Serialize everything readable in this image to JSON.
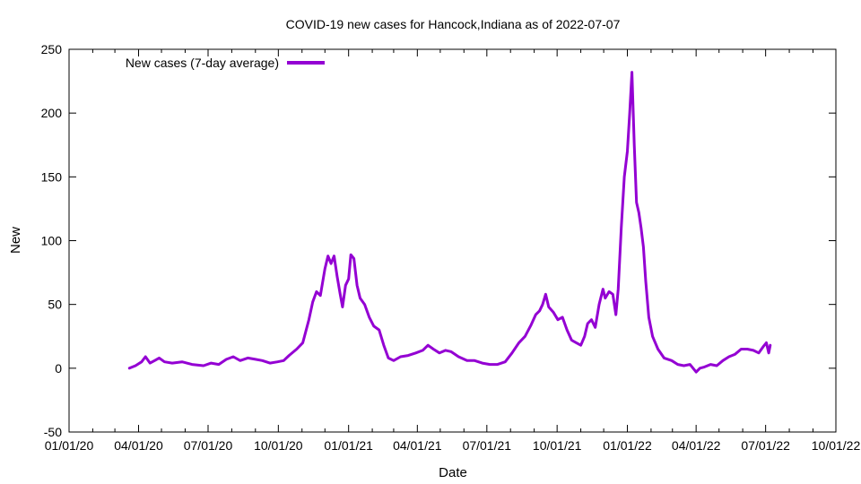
{
  "chart_data": {
    "type": "line",
    "title": "COVID-19 new cases for Hancock,Indiana as of 2022-07-07",
    "xlabel": "Date",
    "ylabel": "New",
    "xlim": [
      "2020-01-01",
      "2022-10-01"
    ],
    "ylim": [
      -50,
      250
    ],
    "y_ticks": [
      -50,
      0,
      50,
      100,
      150,
      200,
      250
    ],
    "x_ticks": [
      {
        "date": "2020-01-01",
        "label": "01/01/20"
      },
      {
        "date": "2020-04-01",
        "label": "04/01/20"
      },
      {
        "date": "2020-07-01",
        "label": "07/01/20"
      },
      {
        "date": "2020-10-01",
        "label": "10/01/20"
      },
      {
        "date": "2021-01-01",
        "label": "01/01/21"
      },
      {
        "date": "2021-04-01",
        "label": "04/01/21"
      },
      {
        "date": "2021-07-01",
        "label": "07/01/21"
      },
      {
        "date": "2021-10-01",
        "label": "10/01/21"
      },
      {
        "date": "2022-01-01",
        "label": "01/01/22"
      },
      {
        "date": "2022-04-01",
        "label": "04/01/22"
      },
      {
        "date": "2022-07-01",
        "label": "07/01/22"
      },
      {
        "date": "2022-10-01",
        "label": "10/01/22"
      }
    ],
    "grid": false,
    "legend": "top-left",
    "series": [
      {
        "name": "New cases (7-day average)",
        "color": "#9400d3",
        "points": [
          [
            "2020-03-20",
            0
          ],
          [
            "2020-03-28",
            2
          ],
          [
            "2020-04-05",
            5
          ],
          [
            "2020-04-10",
            9
          ],
          [
            "2020-04-16",
            4
          ],
          [
            "2020-04-22",
            6
          ],
          [
            "2020-04-28",
            8
          ],
          [
            "2020-05-05",
            5
          ],
          [
            "2020-05-15",
            4
          ],
          [
            "2020-05-28",
            5
          ],
          [
            "2020-06-10",
            3
          ],
          [
            "2020-06-25",
            2
          ],
          [
            "2020-07-05",
            4
          ],
          [
            "2020-07-15",
            3
          ],
          [
            "2020-07-25",
            7
          ],
          [
            "2020-08-03",
            9
          ],
          [
            "2020-08-12",
            6
          ],
          [
            "2020-08-22",
            8
          ],
          [
            "2020-09-01",
            7
          ],
          [
            "2020-09-10",
            6
          ],
          [
            "2020-09-20",
            4
          ],
          [
            "2020-09-30",
            5
          ],
          [
            "2020-10-08",
            6
          ],
          [
            "2020-10-15",
            10
          ],
          [
            "2020-10-25",
            15
          ],
          [
            "2020-11-02",
            20
          ],
          [
            "2020-11-10",
            38
          ],
          [
            "2020-11-15",
            52
          ],
          [
            "2020-11-20",
            60
          ],
          [
            "2020-11-25",
            57
          ],
          [
            "2020-12-01",
            78
          ],
          [
            "2020-12-05",
            88
          ],
          [
            "2020-12-09",
            82
          ],
          [
            "2020-12-13",
            88
          ],
          [
            "2020-12-17",
            72
          ],
          [
            "2020-12-21",
            58
          ],
          [
            "2020-12-24",
            48
          ],
          [
            "2020-12-28",
            65
          ],
          [
            "2021-01-01",
            70
          ],
          [
            "2021-01-04",
            89
          ],
          [
            "2021-01-08",
            86
          ],
          [
            "2021-01-12",
            65
          ],
          [
            "2021-01-16",
            55
          ],
          [
            "2021-01-22",
            50
          ],
          [
            "2021-01-28",
            40
          ],
          [
            "2021-02-03",
            33
          ],
          [
            "2021-02-10",
            30
          ],
          [
            "2021-02-16",
            18
          ],
          [
            "2021-02-22",
            8
          ],
          [
            "2021-03-01",
            6
          ],
          [
            "2021-03-10",
            9
          ],
          [
            "2021-03-20",
            10
          ],
          [
            "2021-03-30",
            12
          ],
          [
            "2021-04-08",
            14
          ],
          [
            "2021-04-15",
            18
          ],
          [
            "2021-04-22",
            15
          ],
          [
            "2021-04-30",
            12
          ],
          [
            "2021-05-08",
            14
          ],
          [
            "2021-05-15",
            13
          ],
          [
            "2021-05-25",
            9
          ],
          [
            "2021-06-05",
            6
          ],
          [
            "2021-06-15",
            6
          ],
          [
            "2021-06-25",
            4
          ],
          [
            "2021-07-05",
            3
          ],
          [
            "2021-07-15",
            3
          ],
          [
            "2021-07-25",
            5
          ],
          [
            "2021-08-03",
            12
          ],
          [
            "2021-08-12",
            20
          ],
          [
            "2021-08-20",
            25
          ],
          [
            "2021-08-28",
            34
          ],
          [
            "2021-09-03",
            42
          ],
          [
            "2021-09-08",
            45
          ],
          [
            "2021-09-12",
            50
          ],
          [
            "2021-09-16",
            58
          ],
          [
            "2021-09-20",
            48
          ],
          [
            "2021-09-26",
            44
          ],
          [
            "2021-10-02",
            38
          ],
          [
            "2021-10-08",
            40
          ],
          [
            "2021-10-14",
            30
          ],
          [
            "2021-10-20",
            22
          ],
          [
            "2021-10-26",
            20
          ],
          [
            "2021-11-01",
            18
          ],
          [
            "2021-11-06",
            25
          ],
          [
            "2021-11-10",
            35
          ],
          [
            "2021-11-15",
            38
          ],
          [
            "2021-11-20",
            32
          ],
          [
            "2021-11-25",
            50
          ],
          [
            "2021-11-30",
            62
          ],
          [
            "2021-12-03",
            55
          ],
          [
            "2021-12-08",
            60
          ],
          [
            "2021-12-13",
            58
          ],
          [
            "2021-12-17",
            42
          ],
          [
            "2021-12-20",
            62
          ],
          [
            "2021-12-24",
            110
          ],
          [
            "2021-12-28",
            150
          ],
          [
            "2022-01-01",
            170
          ],
          [
            "2022-01-04",
            200
          ],
          [
            "2022-01-07",
            232
          ],
          [
            "2022-01-10",
            175
          ],
          [
            "2022-01-13",
            130
          ],
          [
            "2022-01-16",
            122
          ],
          [
            "2022-01-19",
            110
          ],
          [
            "2022-01-22",
            95
          ],
          [
            "2022-01-25",
            68
          ],
          [
            "2022-01-29",
            40
          ],
          [
            "2022-02-03",
            25
          ],
          [
            "2022-02-10",
            15
          ],
          [
            "2022-02-18",
            8
          ],
          [
            "2022-02-28",
            6
          ],
          [
            "2022-03-08",
            3
          ],
          [
            "2022-03-16",
            2
          ],
          [
            "2022-03-24",
            3
          ],
          [
            "2022-04-01",
            -3
          ],
          [
            "2022-04-06",
            0
          ],
          [
            "2022-04-12",
            1
          ],
          [
            "2022-04-20",
            3
          ],
          [
            "2022-04-28",
            2
          ],
          [
            "2022-05-06",
            6
          ],
          [
            "2022-05-14",
            9
          ],
          [
            "2022-05-22",
            11
          ],
          [
            "2022-05-30",
            15
          ],
          [
            "2022-06-07",
            15
          ],
          [
            "2022-06-15",
            14
          ],
          [
            "2022-06-22",
            12
          ],
          [
            "2022-06-28",
            17
          ],
          [
            "2022-07-02",
            20
          ],
          [
            "2022-07-05",
            12
          ],
          [
            "2022-07-07",
            18
          ]
        ]
      }
    ]
  }
}
